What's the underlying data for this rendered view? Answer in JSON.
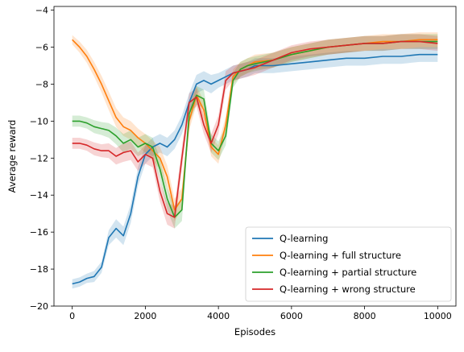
{
  "chart_data": {
    "type": "line",
    "title": "",
    "xlabel": "Episodes",
    "ylabel": "Average reward",
    "xlim": [
      -500,
      10500
    ],
    "ylim": [
      -20,
      -3.8
    ],
    "xticks": [
      0,
      2000,
      4000,
      6000,
      8000,
      10000
    ],
    "xtick_labels": [
      "0",
      "2000",
      "4000",
      "6000",
      "8000",
      "10000"
    ],
    "yticks": [
      -20,
      -18,
      -16,
      -14,
      -12,
      -10,
      -8,
      -6,
      -4
    ],
    "ytick_labels": [
      "−20",
      "−18",
      "−16",
      "−14",
      "−12",
      "−10",
      "−8",
      "−6",
      "−4"
    ],
    "grid": false,
    "legend": "lower-right",
    "series": [
      {
        "name": "Q-learning",
        "color": "#1f77b4",
        "x": [
          0,
          200,
          400,
          600,
          800,
          1000,
          1200,
          1400,
          1600,
          1800,
          2000,
          2200,
          2400,
          2600,
          2800,
          3000,
          3200,
          3400,
          3600,
          3800,
          4000,
          4200,
          4400,
          4600,
          4800,
          5000,
          5500,
          6000,
          6500,
          7000,
          7500,
          8000,
          8500,
          9000,
          9500,
          10000
        ],
        "y": [
          -18.8,
          -18.7,
          -18.5,
          -18.4,
          -17.9,
          -16.3,
          -15.8,
          -16.2,
          -15.0,
          -13.0,
          -11.8,
          -11.4,
          -11.2,
          -11.4,
          -11.0,
          -10.2,
          -9.0,
          -8.0,
          -7.8,
          -8.0,
          -7.8,
          -7.6,
          -7.4,
          -7.3,
          -7.2,
          -7.0,
          -7.0,
          -6.9,
          -6.8,
          -6.7,
          -6.6,
          -6.6,
          -6.5,
          -6.5,
          -6.4,
          -6.4
        ],
        "band": [
          0.25,
          0.25,
          0.25,
          0.3,
          0.3,
          0.4,
          0.5,
          0.5,
          0.5,
          0.5,
          0.5,
          0.5,
          0.5,
          0.5,
          0.5,
          0.5,
          0.5,
          0.5,
          0.5,
          0.5,
          0.4,
          0.4,
          0.4,
          0.4,
          0.4,
          0.4,
          0.4,
          0.4,
          0.4,
          0.4,
          0.4,
          0.4,
          0.4,
          0.4,
          0.4,
          0.4
        ]
      },
      {
        "name": "Q-learning + full structure",
        "color": "#ff7f0e",
        "x": [
          0,
          200,
          400,
          600,
          800,
          1000,
          1200,
          1400,
          1600,
          1800,
          2000,
          2200,
          2400,
          2600,
          2800,
          3000,
          3200,
          3400,
          3600,
          3800,
          4000,
          4200,
          4400,
          4600,
          4800,
          5000,
          5500,
          6000,
          6500,
          7000,
          7500,
          8000,
          8500,
          9000,
          9500,
          10000
        ],
        "y": [
          -5.6,
          -6.0,
          -6.5,
          -7.2,
          -8.0,
          -8.9,
          -9.8,
          -10.3,
          -10.5,
          -10.9,
          -11.2,
          -11.6,
          -12.0,
          -13.0,
          -14.8,
          -14.2,
          -10.0,
          -8.6,
          -9.4,
          -11.4,
          -11.8,
          -10.2,
          -7.6,
          -7.2,
          -7.0,
          -6.8,
          -6.7,
          -6.4,
          -6.2,
          -6.0,
          -5.9,
          -5.8,
          -5.7,
          -5.7,
          -5.6,
          -5.6
        ],
        "band": [
          0.25,
          0.3,
          0.35,
          0.4,
          0.45,
          0.5,
          0.5,
          0.5,
          0.5,
          0.5,
          0.5,
          0.55,
          0.6,
          0.6,
          0.6,
          0.6,
          0.5,
          0.5,
          0.5,
          0.5,
          0.5,
          0.5,
          0.4,
          0.4,
          0.4,
          0.4,
          0.4,
          0.4,
          0.4,
          0.4,
          0.4,
          0.4,
          0.4,
          0.4,
          0.4,
          0.4
        ]
      },
      {
        "name": "Q-learning + partial structure",
        "color": "#2ca02c",
        "x": [
          0,
          200,
          400,
          600,
          800,
          1000,
          1200,
          1400,
          1600,
          1800,
          2000,
          2200,
          2400,
          2600,
          2800,
          3000,
          3200,
          3400,
          3600,
          3800,
          4000,
          4200,
          4400,
          4600,
          4800,
          5000,
          5500,
          6000,
          6500,
          7000,
          7500,
          8000,
          8500,
          9000,
          9500,
          10000
        ],
        "y": [
          -10.0,
          -10.0,
          -10.1,
          -10.3,
          -10.4,
          -10.5,
          -10.8,
          -11.2,
          -11.0,
          -11.4,
          -11.2,
          -11.4,
          -12.6,
          -14.2,
          -15.2,
          -14.8,
          -9.6,
          -8.6,
          -8.8,
          -11.2,
          -11.6,
          -10.8,
          -7.8,
          -7.2,
          -7.0,
          -6.9,
          -6.7,
          -6.4,
          -6.2,
          -6.0,
          -5.9,
          -5.8,
          -5.8,
          -5.7,
          -5.7,
          -5.7
        ],
        "band": [
          0.3,
          0.3,
          0.3,
          0.35,
          0.35,
          0.4,
          0.45,
          0.5,
          0.5,
          0.5,
          0.5,
          0.5,
          0.55,
          0.6,
          0.6,
          0.6,
          0.5,
          0.5,
          0.5,
          0.5,
          0.5,
          0.5,
          0.4,
          0.4,
          0.4,
          0.4,
          0.4,
          0.4,
          0.4,
          0.4,
          0.4,
          0.4,
          0.4,
          0.4,
          0.4,
          0.4
        ]
      },
      {
        "name": "Q-learning + wrong structure",
        "color": "#d62728",
        "x": [
          0,
          200,
          400,
          600,
          800,
          1000,
          1200,
          1400,
          1600,
          1800,
          2000,
          2200,
          2400,
          2600,
          2800,
          3000,
          3200,
          3400,
          3600,
          3800,
          4000,
          4200,
          4400,
          4600,
          4800,
          5000,
          5500,
          6000,
          6500,
          7000,
          7500,
          8000,
          8500,
          9000,
          9500,
          10000
        ],
        "y": [
          -11.2,
          -11.2,
          -11.3,
          -11.5,
          -11.6,
          -11.6,
          -11.9,
          -11.7,
          -11.6,
          -12.2,
          -11.8,
          -12.0,
          -13.8,
          -15.0,
          -15.2,
          -12.0,
          -9.0,
          -8.7,
          -10.2,
          -11.2,
          -10.2,
          -7.8,
          -7.4,
          -7.3,
          -7.2,
          -7.1,
          -6.7,
          -6.3,
          -6.1,
          -6.0,
          -5.9,
          -5.8,
          -5.8,
          -5.7,
          -5.7,
          -5.8
        ],
        "band": [
          0.3,
          0.3,
          0.3,
          0.35,
          0.35,
          0.4,
          0.45,
          0.5,
          0.5,
          0.5,
          0.5,
          0.5,
          0.55,
          0.6,
          0.6,
          0.6,
          0.5,
          0.5,
          0.5,
          0.5,
          0.5,
          0.5,
          0.4,
          0.4,
          0.4,
          0.4,
          0.4,
          0.4,
          0.4,
          0.4,
          0.4,
          0.4,
          0.4,
          0.4,
          0.4,
          0.4
        ]
      }
    ]
  }
}
